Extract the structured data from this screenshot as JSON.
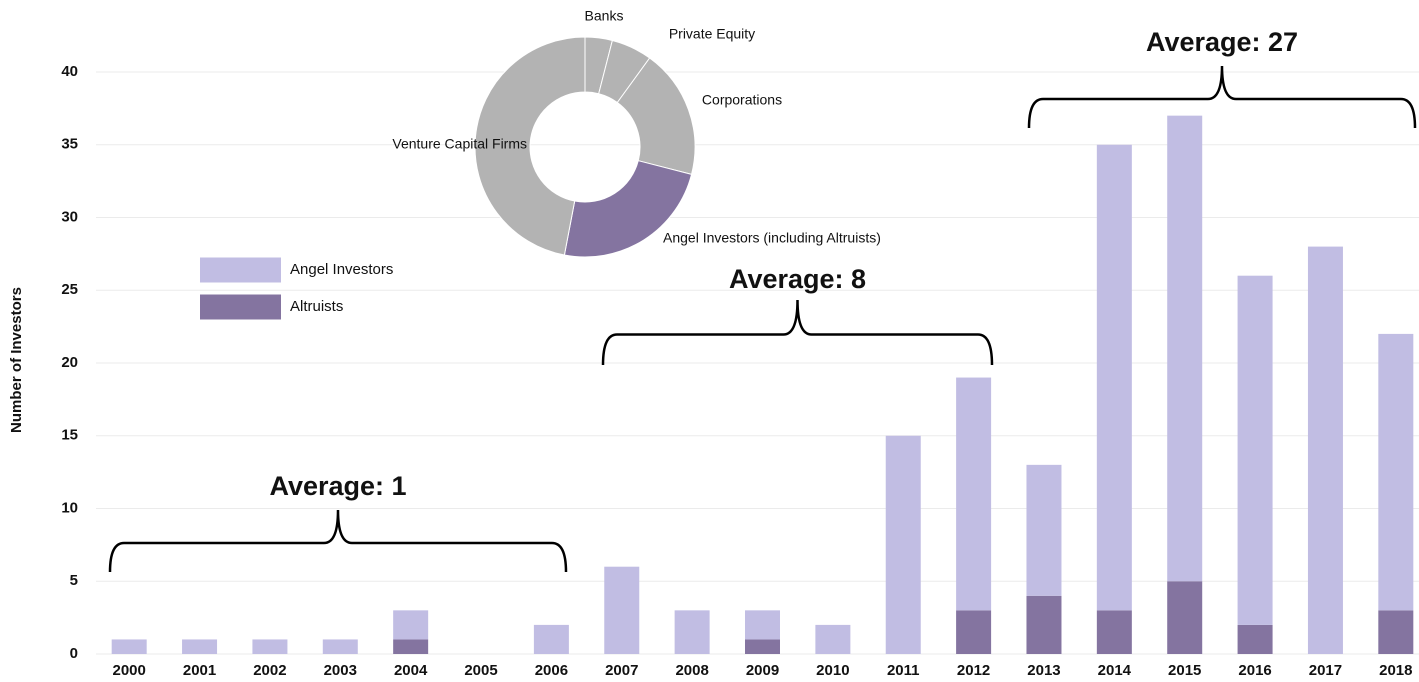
{
  "chart_data": [
    {
      "type": "stacked-bar",
      "y_label": "Number of Investors",
      "categories": [
        "2000",
        "2001",
        "2002",
        "2003",
        "2004",
        "2005",
        "2006",
        "2007",
        "2008",
        "2009",
        "2010",
        "2011",
        "2012",
        "2013",
        "2014",
        "2015",
        "2016",
        "2017",
        "2018"
      ],
      "series": [
        {
          "name": "Angel Investors",
          "color": "#c1bde3",
          "values": [
            1,
            1,
            1,
            1,
            2,
            0,
            2,
            6,
            3,
            2,
            2,
            15,
            16,
            9,
            32,
            32,
            24,
            28,
            19
          ]
        },
        {
          "name": "Altruists",
          "color": "#8474a0",
          "values": [
            0,
            0,
            0,
            0,
            1,
            0,
            0,
            0,
            0,
            1,
            0,
            0,
            3,
            4,
            3,
            5,
            2,
            0,
            3
          ]
        }
      ],
      "ylim": [
        0,
        40
      ],
      "yticks": [
        0,
        5,
        10,
        15,
        20,
        25,
        30,
        35,
        40
      ],
      "grid": true,
      "annotations": [
        "Average: 1",
        "Average: 8",
        "Average: 27"
      ]
    },
    {
      "type": "donut",
      "categories": [
        "Banks",
        "Private Equity",
        "Corporations",
        "Angel Investors (including Altruists)",
        "Venture Capital Firms"
      ],
      "values": [
        4,
        6,
        19,
        24,
        47
      ],
      "colors": [
        "#b3b3b3",
        "#b3b3b3",
        "#b3b3b3",
        "#8474a0",
        "#b3b3b3"
      ]
    }
  ]
}
